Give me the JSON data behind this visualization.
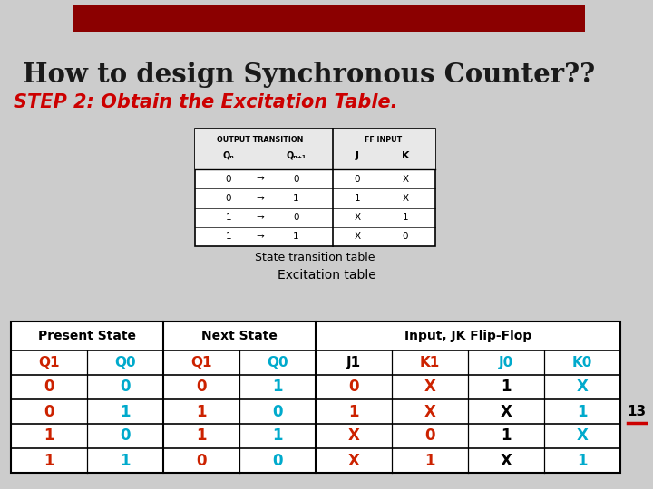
{
  "title": "How to design Synchronous Counter??",
  "subtitle": "STEP 2: Obtain the Excitation Table.",
  "title_color": "#1a1a1a",
  "subtitle_color": "#cc0000",
  "bg_color": "#cccccc",
  "top_bar_color": "#8b0000",
  "state_transition_caption": "State transition table",
  "excitation_caption": "Excitation table",
  "page_number": "13",
  "excitation_headers_row2": [
    "Q1",
    "Q0",
    "Q1",
    "Q0",
    "J1",
    "K1",
    "J0",
    "K0"
  ],
  "excitation_data": [
    [
      "0",
      "0",
      "0",
      "1",
      "0",
      "X",
      "1",
      "X"
    ],
    [
      "0",
      "1",
      "1",
      "0",
      "1",
      "X",
      "X",
      "1"
    ],
    [
      "1",
      "0",
      "1",
      "1",
      "X",
      "0",
      "1",
      "X"
    ],
    [
      "1",
      "1",
      "0",
      "0",
      "X",
      "1",
      "X",
      "1"
    ]
  ],
  "col_colors_row2": [
    "#cc2200",
    "#00aacc",
    "#cc2200",
    "#00aacc",
    "#000000",
    "#cc2200",
    "#00aacc",
    "#00aacc"
  ],
  "col_colors_data": [
    "#cc2200",
    "#00aacc",
    "#cc2200",
    "#00aacc",
    "#cc2200",
    "#cc2200",
    "#000000",
    "#00aacc"
  ],
  "state_trans_rows": [
    [
      "0",
      "→",
      "0",
      "0",
      "X"
    ],
    [
      "0",
      "→",
      "1",
      "1",
      "X"
    ],
    [
      "1",
      "→",
      "0",
      "X",
      "1"
    ],
    [
      "1",
      "→",
      "1",
      "X",
      "0"
    ]
  ]
}
